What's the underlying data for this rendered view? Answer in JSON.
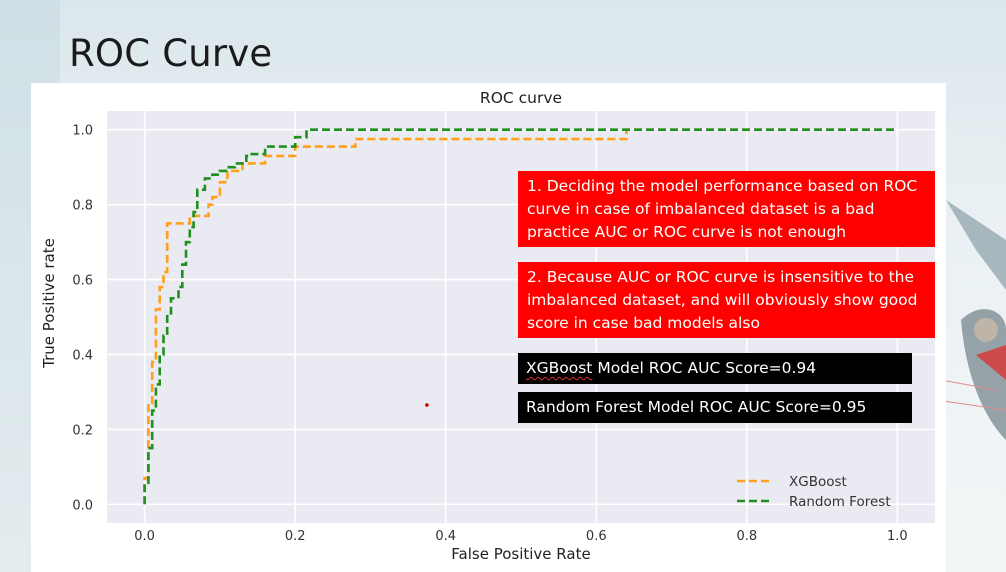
{
  "slide": {
    "title": "ROC Curve"
  },
  "notes": {
    "note1": "1. Deciding the model performance based on ROC curve in case of imbalanced dataset is a bad practice AUC or ROC curve is not enough",
    "note2": "2. Because AUC or ROC curve is insensitive to the imbalanced dataset, and will obviously show good score in case bad models also",
    "xgb_score_model": "XGBoost",
    "xgb_score_rest": " Model ROC AUC Score=0.94",
    "rf_score": "Random Forest Model ROC AUC Score=0.95"
  },
  "colors": {
    "xgboost": "#ff9f1c",
    "random_forest": "#1f8f1f",
    "plot_bg": "#eaeaf2",
    "note_red": "#ff0000",
    "note_black": "#000000"
  },
  "chart_data": {
    "type": "line",
    "title": "ROC curve",
    "xlabel": "False Positive Rate",
    "ylabel": "True Positive rate",
    "xlim": [
      -0.05,
      1.05
    ],
    "ylim": [
      -0.05,
      1.05
    ],
    "xticks": [
      "0.0",
      "0.2",
      "0.4",
      "0.6",
      "0.8",
      "1.0"
    ],
    "yticks": [
      "0.0",
      "0.2",
      "0.4",
      "0.6",
      "0.8",
      "1.0"
    ],
    "grid": true,
    "legend_position": "lower-right",
    "series": [
      {
        "name": "XGBoost",
        "style": "dashed",
        "x": [
          0.0,
          0.0,
          0.005,
          0.005,
          0.01,
          0.01,
          0.015,
          0.015,
          0.02,
          0.02,
          0.025,
          0.025,
          0.03,
          0.03,
          0.04,
          0.04,
          0.06,
          0.06,
          0.075,
          0.075,
          0.085,
          0.085,
          0.09,
          0.09,
          0.1,
          0.1,
          0.11,
          0.11,
          0.13,
          0.13,
          0.16,
          0.16,
          0.2,
          0.2,
          0.28,
          0.28,
          0.64,
          0.64,
          1.0
        ],
        "y": [
          0.0,
          0.07,
          0.07,
          0.27,
          0.27,
          0.38,
          0.38,
          0.52,
          0.52,
          0.58,
          0.58,
          0.62,
          0.62,
          0.75,
          0.75,
          0.75,
          0.75,
          0.77,
          0.77,
          0.77,
          0.77,
          0.8,
          0.8,
          0.82,
          0.82,
          0.86,
          0.86,
          0.89,
          0.89,
          0.91,
          0.91,
          0.93,
          0.93,
          0.955,
          0.955,
          0.975,
          0.975,
          1.0,
          1.0
        ]
      },
      {
        "name": "Random Forest",
        "style": "dashed",
        "x": [
          0.0,
          0.0,
          0.005,
          0.005,
          0.01,
          0.01,
          0.015,
          0.015,
          0.02,
          0.02,
          0.025,
          0.025,
          0.03,
          0.03,
          0.035,
          0.035,
          0.045,
          0.045,
          0.05,
          0.05,
          0.055,
          0.055,
          0.06,
          0.06,
          0.065,
          0.065,
          0.07,
          0.07,
          0.08,
          0.08,
          0.09,
          0.09,
          0.1,
          0.1,
          0.11,
          0.11,
          0.12,
          0.12,
          0.135,
          0.135,
          0.14,
          0.14,
          0.16,
          0.16,
          0.175,
          0.175,
          0.2,
          0.2,
          0.215,
          0.215,
          1.0
        ],
        "y": [
          0.0,
          0.05,
          0.05,
          0.15,
          0.15,
          0.25,
          0.25,
          0.32,
          0.32,
          0.4,
          0.4,
          0.45,
          0.45,
          0.51,
          0.51,
          0.55,
          0.55,
          0.58,
          0.58,
          0.64,
          0.64,
          0.7,
          0.7,
          0.74,
          0.74,
          0.78,
          0.78,
          0.84,
          0.84,
          0.87,
          0.87,
          0.88,
          0.88,
          0.89,
          0.89,
          0.9,
          0.9,
          0.91,
          0.91,
          0.93,
          0.93,
          0.935,
          0.935,
          0.955,
          0.955,
          0.955,
          0.955,
          0.98,
          0.98,
          1.0,
          1.0
        ]
      }
    ],
    "annotations": [
      {
        "type": "dot",
        "x": 0.375,
        "y": 0.265,
        "color": "#d00000"
      }
    ]
  }
}
